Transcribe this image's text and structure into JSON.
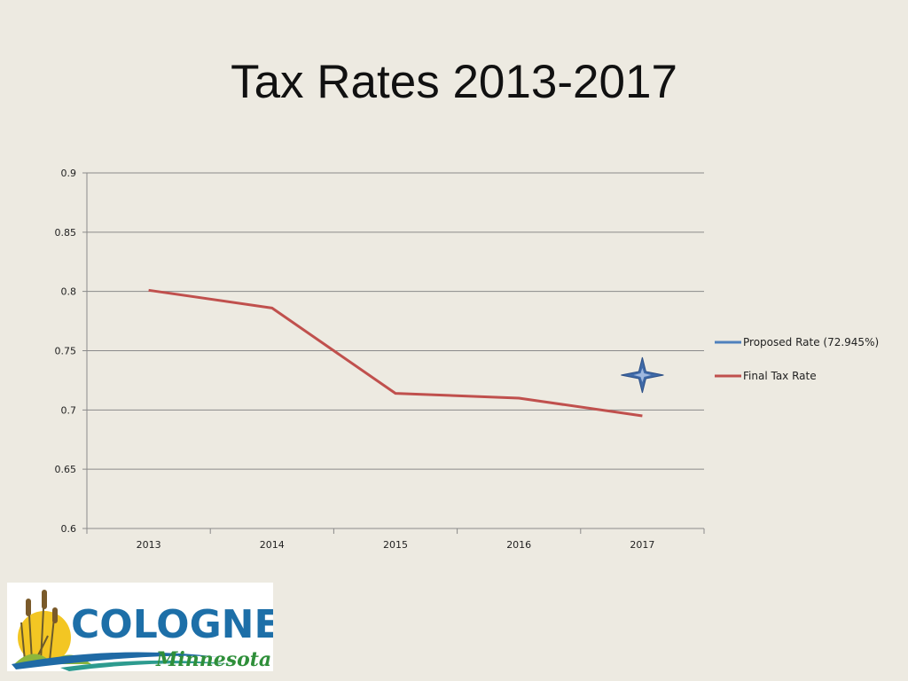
{
  "slide": {
    "title": "Tax Rates 2013-2017"
  },
  "chart_data": {
    "type": "line",
    "categories": [
      "2013",
      "2014",
      "2015",
      "2016",
      "2017"
    ],
    "ylim": [
      0.6,
      0.9
    ],
    "yticks": [
      "0.9",
      "0.85",
      "0.8",
      "0.75",
      "0.7",
      "0.65",
      "0.6"
    ],
    "grid": true,
    "legend_position": "right",
    "series": [
      {
        "name": "Proposed Rate (72.945%)",
        "color": "#4f81bd",
        "marker": "four-point-star",
        "values": [
          null,
          null,
          null,
          null,
          0.72945
        ]
      },
      {
        "name": "Final Tax Rate",
        "color": "#c0504d",
        "values": [
          0.801,
          0.786,
          0.714,
          0.71,
          0.695
        ]
      }
    ]
  },
  "logo": {
    "text_line1": "COLOGNE",
    "text_line2": "Minnesota"
  }
}
